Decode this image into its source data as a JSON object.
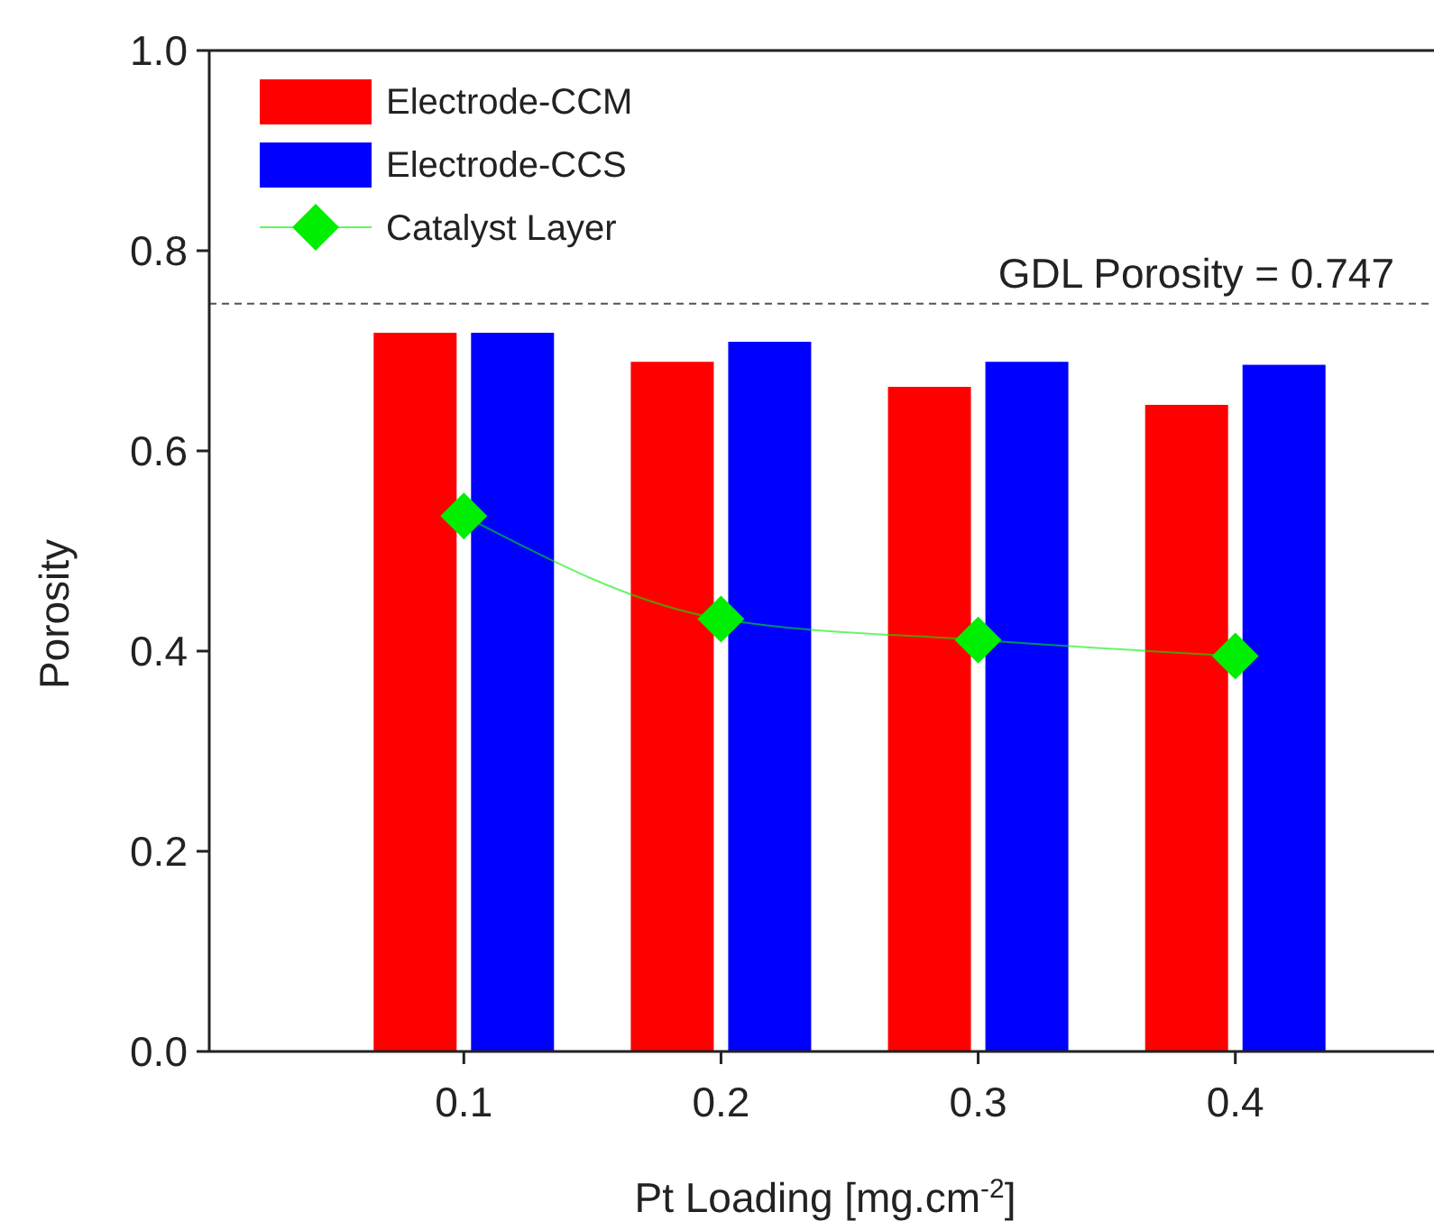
{
  "chart_data": {
    "type": "bar",
    "xlabel": "Pt Loading [mg.cm$^{-2}$]",
    "ylabel": "Porosity",
    "categories": [
      "0.1",
      "0.2",
      "0.3",
      "0.4"
    ],
    "series": [
      {
        "name": "Electrode-CCM",
        "color": "#ff0000",
        "values": [
          0.718,
          0.689,
          0.664,
          0.646
        ]
      },
      {
        "name": "Electrode-CCS",
        "color": "#0000ff",
        "values": [
          0.718,
          0.709,
          0.689,
          0.686
        ]
      },
      {
        "name": "Catalyst Layer",
        "type": "line",
        "color": "#00ee00",
        "marker": "diamond",
        "line_style": "solid",
        "values": [
          0.535,
          0.432,
          0.411,
          0.395
        ]
      }
    ],
    "ylim": [
      0,
      1
    ],
    "yticks": [
      {
        "value": 0,
        "label": "0.0"
      },
      0.2,
      0.4,
      0.6,
      0.8,
      {
        "value": 1,
        "label": "1.0"
      }
    ],
    "ref_lines": [
      {
        "axis": "y",
        "value": 0.747,
        "label": "GDL Porosity = 0.747",
        "color": "#555555",
        "line_style": "dashed"
      }
    ],
    "legend": "top left",
    "grid": false
  }
}
